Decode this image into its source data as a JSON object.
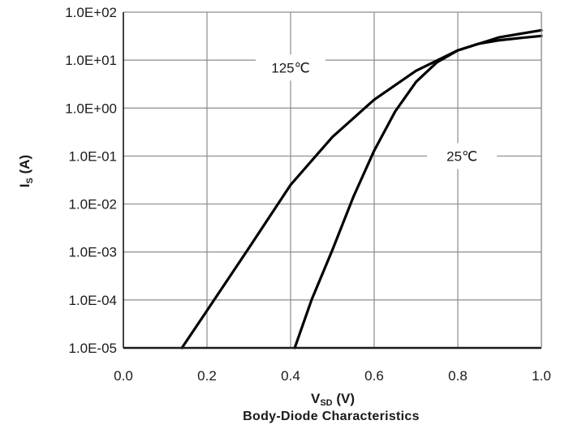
{
  "chart_data": {
    "type": "line",
    "title": "Body-Diode Characteristics",
    "xlabel": {
      "main": "V",
      "sub": "SD",
      "unit": " (V)"
    },
    "ylabel": {
      "main": "I",
      "sub": "S",
      "unit": " (A)"
    },
    "xlim": [
      0.0,
      1.0
    ],
    "ylim": [
      1e-05,
      100
    ],
    "yscale": "log",
    "grid": true,
    "x_ticks": [
      "0.0",
      "0.2",
      "0.4",
      "0.6",
      "0.8",
      "1.0"
    ],
    "x_tick_values": [
      0.0,
      0.2,
      0.4,
      0.6,
      0.8,
      1.0
    ],
    "y_ticks": [
      "1.0E-05",
      "1.0E-04",
      "1.0E-03",
      "1.0E-02",
      "1.0E-01",
      "1.0E+00",
      "1.0E+01",
      "1.0E+02"
    ],
    "y_tick_values": [
      1e-05,
      0.0001,
      0.001,
      0.01,
      0.1,
      1,
      10,
      100
    ],
    "series": [
      {
        "name": "125℃",
        "label_at": {
          "x": 0.4,
          "y": 7.0
        },
        "points": [
          [
            0.14,
            1e-05
          ],
          [
            0.2,
            6e-05
          ],
          [
            0.3,
            0.0012
          ],
          [
            0.4,
            0.025
          ],
          [
            0.5,
            0.25
          ],
          [
            0.6,
            1.5
          ],
          [
            0.7,
            6.0
          ],
          [
            0.8,
            16
          ],
          [
            0.9,
            30
          ],
          [
            1.0,
            42
          ]
        ]
      },
      {
        "name": "25℃",
        "label_at": {
          "x": 0.81,
          "y": 0.1
        },
        "points": [
          [
            0.41,
            1e-05
          ],
          [
            0.45,
            0.0001
          ],
          [
            0.5,
            0.0011
          ],
          [
            0.55,
            0.014
          ],
          [
            0.6,
            0.13
          ],
          [
            0.65,
            0.85
          ],
          [
            0.7,
            3.5
          ],
          [
            0.75,
            9.0
          ],
          [
            0.8,
            16
          ],
          [
            0.85,
            22
          ],
          [
            0.9,
            26
          ],
          [
            0.95,
            29
          ],
          [
            1.0,
            32
          ]
        ]
      }
    ],
    "colors": {
      "line": "#000000",
      "grid": "#8c8c8c",
      "frame": "#1a1a1a",
      "text": "#1a1a1a"
    }
  }
}
